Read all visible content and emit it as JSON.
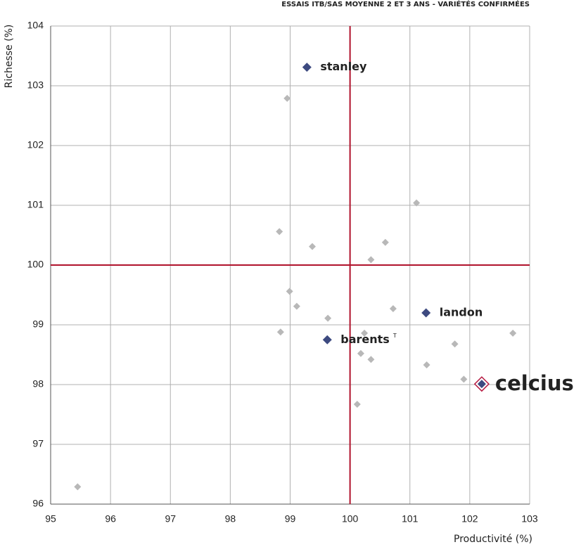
{
  "chart_data": {
    "type": "scatter",
    "title": "ESSAIS ITB/SAS MOYENNE 2 ET 3 ANS - VARIÉTÉS CONFIRMÉES",
    "x_label": "Productivité (%)",
    "y_label": "Richesse (%)",
    "xlim": [
      95,
      103
    ],
    "ylim": [
      96,
      104
    ],
    "xticks": [
      95,
      96,
      97,
      98,
      99,
      100,
      101,
      102,
      103
    ],
    "yticks": [
      96,
      97,
      98,
      99,
      100,
      101,
      102,
      103,
      104
    ],
    "grid": true,
    "xref": 100,
    "yref": 100,
    "ref_color": "#b0132c",
    "series": [
      {
        "color": "#b8b8b8",
        "marker": "diamond",
        "x": [
          95.45,
          98.95,
          101.11,
          98.82,
          99.37,
          100.59,
          100.35,
          98.99,
          99.11,
          99.63,
          100.72,
          98.84,
          100.24,
          100.18,
          100.35,
          101.75,
          101.28,
          101.9,
          102.72,
          100.12
        ],
        "values": [
          96.29,
          102.79,
          101.04,
          100.56,
          100.31,
          100.38,
          100.09,
          99.56,
          99.31,
          99.11,
          99.27,
          98.88,
          98.86,
          98.52,
          98.42,
          98.68,
          98.33,
          98.09,
          98.86,
          97.67
        ]
      },
      {
        "color": "#3d4a80",
        "marker": "diamond",
        "label_color": "#b5173f",
        "x": [
          99.28,
          101.27,
          99.62
        ],
        "values": [
          103.31,
          99.2,
          98.75
        ],
        "labels": [
          "stanley",
          "landon",
          "barents"
        ],
        "label_notes": [
          null,
          null,
          "T"
        ]
      },
      {
        "color": "#b5173f",
        "marker": "diamond-open",
        "label_color": "#b5173f",
        "x": [
          102.2
        ],
        "values": [
          98.01
        ],
        "labels": [
          "celcius"
        ]
      }
    ]
  }
}
